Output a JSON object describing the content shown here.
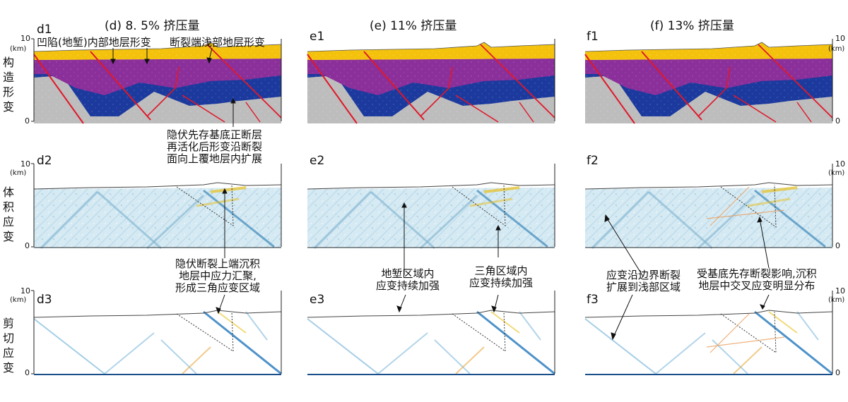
{
  "column_titles": [
    "(d) 8. 5% 挤压量",
    "(e) 11% 挤压量",
    "(f) 13% 挤压量"
  ],
  "row_labels": [
    [
      "构",
      "造",
      "形",
      "变"
    ],
    [
      "体",
      "积",
      "应",
      "变"
    ],
    [
      "剪",
      "切",
      "应",
      "变"
    ]
  ],
  "panel_labels": {
    "d1": "d1",
    "e1": "e1",
    "f1": "f1",
    "d2": "d2",
    "e2": "e2",
    "f2": "f2",
    "d3": "d3",
    "e3": "e3",
    "f3": "f3"
  },
  "axis": {
    "top_tick": "10",
    "bottom_tick": "0",
    "unit": "(km)"
  },
  "annotations": {
    "d1_a": "凹陷(地堑)内部地层形变",
    "d1_b": "断裂端浅部地层形变",
    "d1_c": [
      "隐伏先存基底正断层",
      "再活化后形变沿断裂",
      "面向上覆地层内扩展"
    ],
    "d2_a": [
      "隐伏断裂上端沉积",
      "地层中应力汇聚,",
      "形成三角应变区域"
    ],
    "e2_a": [
      "地堑区域内",
      "应变持续加强"
    ],
    "e2_b": [
      "三角区域内",
      "应变持续加强"
    ],
    "f2_a": [
      "应变沿边界断裂",
      "扩展到浅部区域"
    ],
    "f2_b": [
      "受基底先存断裂影响,沉积",
      "地层中交叉应变明显分布"
    ]
  },
  "colors": {
    "yellow_layer": "#f4c20d",
    "purple_layer": "#8b2f9a",
    "blue_layer": "#1c3a9e",
    "basement": "#bdbdbd",
    "fault": "#e0182a",
    "volumetric_bg": "#d8ecf4",
    "strain_blue": "#2f7fc0",
    "strain_yellow": "#e8c020"
  }
}
